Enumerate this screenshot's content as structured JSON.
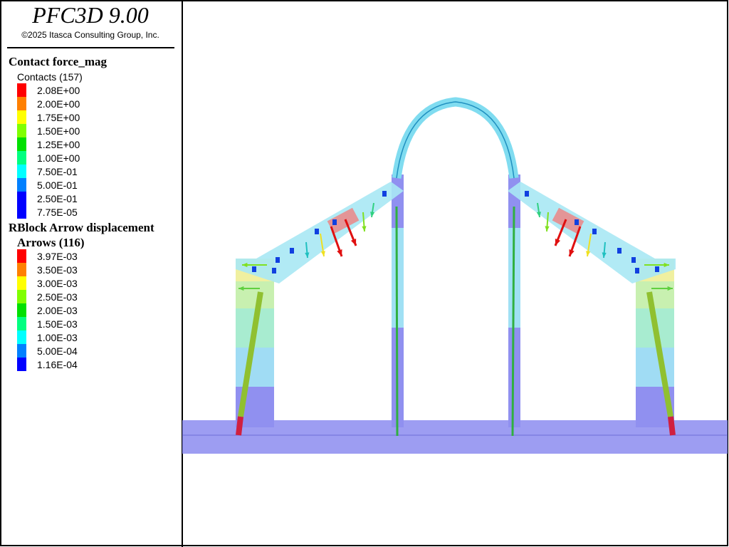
{
  "header": {
    "title": "PFC3D 9.00",
    "copyright": "©2025 Itasca Consulting Group, Inc."
  },
  "legends": [
    {
      "title": "Contact force_mag",
      "subtitle": "Contacts (157)",
      "items": [
        {
          "label": "2.08E+00",
          "color": "#ff0000"
        },
        {
          "label": "2.00E+00",
          "color": "#ff8000"
        },
        {
          "label": "1.75E+00",
          "color": "#ffff00"
        },
        {
          "label": "1.50E+00",
          "color": "#80ff00"
        },
        {
          "label": "1.25E+00",
          "color": "#00e000"
        },
        {
          "label": "1.00E+00",
          "color": "#00ff80"
        },
        {
          "label": "7.50E-01",
          "color": "#00ffff"
        },
        {
          "label": "5.00E-01",
          "color": "#0080ff"
        },
        {
          "label": "2.50E-01",
          "color": "#0000ff"
        },
        {
          "label": "7.75E-05",
          "color": "#0000ff"
        }
      ]
    },
    {
      "title": "RBlock Arrow displacement",
      "subtitle": "Arrows (116)",
      "items": [
        {
          "label": "3.97E-03",
          "color": "#ff0000"
        },
        {
          "label": "3.50E-03",
          "color": "#ff8000"
        },
        {
          "label": "3.00E-03",
          "color": "#ffff00"
        },
        {
          "label": "2.50E-03",
          "color": "#80ff00"
        },
        {
          "label": "2.00E-03",
          "color": "#00e000"
        },
        {
          "label": "1.50E-03",
          "color": "#00ff80"
        },
        {
          "label": "1.00E-03",
          "color": "#00ffff"
        },
        {
          "label": "5.00E-04",
          "color": "#0080ff"
        },
        {
          "label": "1.16E-04",
          "color": "#0000ff"
        }
      ]
    }
  ]
}
